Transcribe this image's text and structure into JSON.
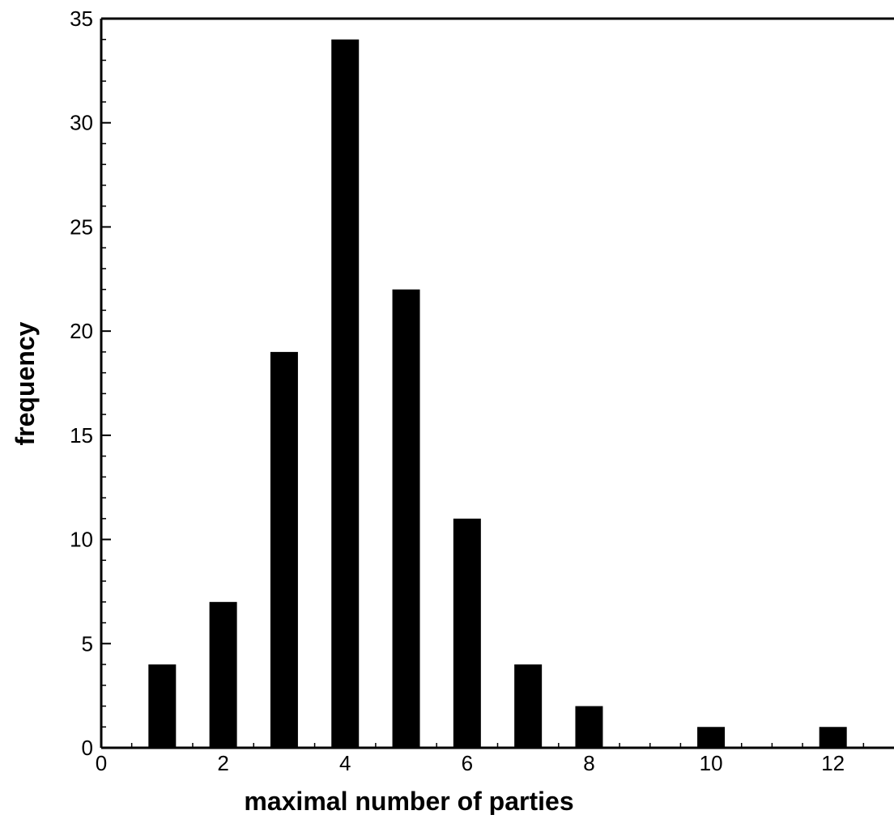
{
  "chart_data": {
    "type": "bar",
    "title": "",
    "xlabel": "maximal number of parties",
    "ylabel": "frequency",
    "xlim": [
      0,
      13
    ],
    "ylim": [
      0,
      35
    ],
    "x_ticks": [
      0,
      2,
      4,
      6,
      8,
      10,
      12
    ],
    "x_tick_labels": [
      "0",
      "2",
      "4",
      "6",
      "8",
      "10",
      "12"
    ],
    "y_ticks": [
      0,
      5,
      10,
      15,
      20,
      25,
      30,
      35
    ],
    "y_tick_labels": [
      "0",
      "5",
      "10",
      "15",
      "20",
      "25",
      "30",
      "35"
    ],
    "grid": false,
    "legend": "none",
    "bar_color": "#000000",
    "x": [
      1,
      2,
      3,
      4,
      5,
      6,
      7,
      8,
      10,
      12
    ],
    "values": [
      4,
      7,
      19,
      34,
      22,
      11,
      4,
      2,
      1,
      1
    ]
  }
}
